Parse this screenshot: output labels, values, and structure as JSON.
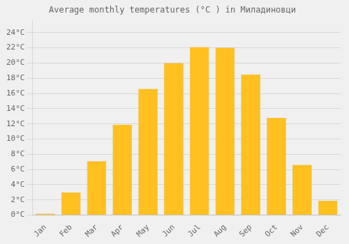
{
  "chart_data": {
    "type": "bar",
    "title": "Average monthly temperatures (°C ) in Миладиновци",
    "categories": [
      "Jan",
      "Feb",
      "Mar",
      "Apr",
      "May",
      "Jun",
      "Jul",
      "Aug",
      "Sep",
      "Oct",
      "Nov",
      "Dec"
    ],
    "values": [
      0.2,
      3.0,
      7.1,
      11.9,
      16.6,
      20.0,
      22.1,
      22.0,
      18.5,
      12.8,
      6.6,
      1.9
    ],
    "color": "#FFC020",
    "ylim": [
      0,
      25.5
    ],
    "yticks": [
      {
        "value": 0,
        "label": "0°C"
      },
      {
        "value": 2,
        "label": "2°C"
      },
      {
        "value": 4,
        "label": "4°C"
      },
      {
        "value": 6,
        "label": "6°C"
      },
      {
        "value": 8,
        "label": "8°C"
      },
      {
        "value": 10,
        "label": "10°C"
      },
      {
        "value": 12,
        "label": "12°C"
      },
      {
        "value": 14,
        "label": "14°C"
      },
      {
        "value": 16,
        "label": "16°C"
      },
      {
        "value": 18,
        "label": "18°C"
      },
      {
        "value": 20,
        "label": "20°C"
      },
      {
        "value": 22,
        "label": "22°C"
      },
      {
        "value": 24,
        "label": "24°C"
      }
    ],
    "grid": true
  }
}
